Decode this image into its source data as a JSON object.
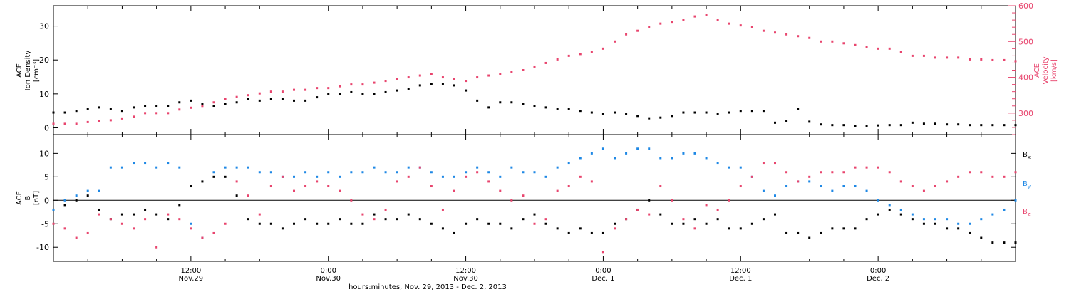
{
  "colors": {
    "black": "#000000",
    "pink": "#e8456e",
    "blue": "#1e88e5"
  },
  "footer": {
    "xaxis_title": "hours:minutes, Nov. 29, 2013 - Dec. 2, 2013"
  },
  "x_ticks": [
    {
      "time": "12:00",
      "date": "Nov.29",
      "hours": 12
    },
    {
      "time": "0:00",
      "date": "Nov.30",
      "hours": 24
    },
    {
      "time": "12:00",
      "date": "Nov.30",
      "hours": 36
    },
    {
      "time": "0:00",
      "date": "Dec. 1",
      "hours": 48
    },
    {
      "time": "12:00",
      "date": "Dec. 1",
      "hours": 60
    },
    {
      "time": "0:00",
      "date": "Dec. 2",
      "hours": 72
    }
  ],
  "chart_data": [
    {
      "type": "scatter",
      "panel": "top",
      "ylabel_lines": [
        "ACE",
        "Ion Density",
        "[cm⁻³]"
      ],
      "y2label_lines": [
        "ACE",
        "Velocity",
        "[km/s]"
      ],
      "xlim_hours": [
        0,
        84
      ],
      "ylim": [
        -2,
        36
      ],
      "yticks": [
        0,
        10,
        20,
        30
      ],
      "y2lim": [
        240,
        600
      ],
      "y2ticks": [
        300,
        400,
        500,
        600
      ],
      "series": [
        {
          "color": "#000000",
          "axis": "left",
          "x_hours": [
            0,
            1,
            2,
            3,
            4,
            5,
            6,
            7,
            8,
            9,
            10,
            11,
            12,
            13,
            14,
            15,
            16,
            17,
            18,
            19,
            20,
            21,
            22,
            23,
            24,
            25,
            26,
            27,
            28,
            29,
            30,
            31,
            32,
            33,
            34,
            35,
            36,
            37,
            38,
            39,
            40,
            41,
            42,
            43,
            44,
            45,
            46,
            47,
            48,
            49,
            50,
            51,
            52,
            53,
            54,
            55,
            56,
            57,
            58,
            59,
            60,
            61,
            62,
            63,
            64,
            65,
            66,
            67,
            68,
            69,
            70,
            71,
            72,
            73,
            74,
            75,
            76,
            77,
            78,
            79,
            80,
            81,
            82,
            83,
            84
          ],
          "values": [
            4.5,
            4.5,
            5,
            5.5,
            6,
            5.5,
            5,
            6,
            6.5,
            6.5,
            6.5,
            7.5,
            8,
            7,
            6.5,
            7,
            7.5,
            8.5,
            8,
            8.5,
            8.5,
            8,
            8,
            9,
            10,
            10,
            10.5,
            10,
            10,
            10.5,
            11,
            11.5,
            12.5,
            13,
            13,
            12.5,
            11,
            8,
            6,
            7.5,
            7.5,
            7,
            6.5,
            6,
            5.5,
            5.5,
            5,
            4.5,
            4,
            4.5,
            4,
            3.5,
            2.8,
            3,
            3.5,
            4.5,
            4.5,
            4.5,
            4,
            4.5,
            5,
            5,
            5,
            1.5,
            2,
            5.5,
            1.8,
            1,
            0.8,
            0.8,
            0.6,
            0.6,
            0.7,
            0.8,
            0.8,
            1.5,
            1.2,
            1.2,
            1,
            1,
            0.8,
            0.8,
            0.8,
            0.8,
            0.8
          ]
        },
        {
          "color": "#e8456e",
          "axis": "right",
          "x_hours": [
            0,
            1,
            2,
            3,
            4,
            5,
            6,
            7,
            8,
            9,
            10,
            11,
            12,
            13,
            14,
            15,
            16,
            17,
            18,
            19,
            20,
            21,
            22,
            23,
            24,
            25,
            26,
            27,
            28,
            29,
            30,
            31,
            32,
            33,
            34,
            35,
            36,
            37,
            38,
            39,
            40,
            41,
            42,
            43,
            44,
            45,
            46,
            47,
            48,
            49,
            50,
            51,
            52,
            53,
            54,
            55,
            56,
            57,
            58,
            59,
            60,
            61,
            62,
            63,
            64,
            65,
            66,
            67,
            68,
            69,
            70,
            71,
            72,
            73,
            74,
            75,
            76,
            77,
            78,
            79,
            80,
            81,
            82,
            83,
            84
          ],
          "values": [
            270,
            270,
            270,
            275,
            278,
            280,
            285,
            290,
            300,
            300,
            300,
            310,
            315,
            320,
            330,
            340,
            345,
            350,
            355,
            360,
            360,
            365,
            365,
            370,
            370,
            375,
            380,
            380,
            385,
            390,
            395,
            400,
            405,
            410,
            400,
            395,
            390,
            400,
            405,
            410,
            415,
            420,
            430,
            440,
            450,
            460,
            465,
            470,
            480,
            500,
            520,
            530,
            540,
            550,
            555,
            560,
            570,
            575,
            560,
            550,
            545,
            540,
            530,
            525,
            520,
            515,
            510,
            500,
            500,
            495,
            490,
            485,
            480,
            480,
            470,
            460,
            460,
            455,
            455,
            455,
            450,
            450,
            448,
            448,
            445
          ]
        }
      ]
    },
    {
      "type": "scatter",
      "panel": "bottom",
      "ylabel_lines": [
        "ACE",
        "B",
        "[nT]"
      ],
      "xlim_hours": [
        0,
        84
      ],
      "ylim": [
        -13,
        14
      ],
      "yticks": [
        -10,
        -5,
        0,
        5,
        10
      ],
      "legend": [
        {
          "label": "B",
          "sub": "x",
          "color": "#000000"
        },
        {
          "label": "B",
          "sub": "y",
          "color": "#1e88e5"
        },
        {
          "label": "B",
          "sub": "z",
          "color": "#e8456e"
        }
      ],
      "series": [
        {
          "name": "Bx",
          "color": "#000000",
          "x_hours": [
            0,
            1,
            2,
            3,
            4,
            5,
            6,
            7,
            8,
            9,
            10,
            11,
            12,
            13,
            14,
            15,
            16,
            17,
            18,
            19,
            20,
            21,
            22,
            23,
            24,
            25,
            26,
            27,
            28,
            29,
            30,
            31,
            32,
            33,
            34,
            35,
            36,
            37,
            38,
            39,
            40,
            41,
            42,
            43,
            44,
            45,
            46,
            47,
            48,
            49,
            50,
            51,
            52,
            53,
            54,
            55,
            56,
            57,
            58,
            59,
            60,
            61,
            62,
            63,
            64,
            65,
            66,
            67,
            68,
            69,
            70,
            71,
            72,
            73,
            74,
            75,
            76,
            77,
            78,
            79,
            80,
            81,
            82,
            83,
            84
          ],
          "values": [
            -2,
            -1,
            0,
            1,
            -2,
            -4,
            -3,
            -3,
            -2,
            -3,
            -4,
            -1,
            3,
            4,
            5,
            5,
            1,
            -4,
            -5,
            -5,
            -6,
            -5,
            -4,
            -5,
            -5,
            -4,
            -5,
            -5,
            -3,
            -4,
            -4,
            -3,
            -4,
            -5,
            -6,
            -7,
            -5,
            -4,
            -5,
            -5,
            -6,
            -4,
            -3,
            -5,
            -6,
            -7,
            -6,
            -7,
            -7,
            -5,
            -4,
            -2,
            0,
            -3,
            -5,
            -5,
            -4,
            -5,
            -4,
            -6,
            -6,
            -5,
            -4,
            -3,
            -7,
            -7,
            -8,
            -7,
            -6,
            -6,
            -6,
            -4,
            -3,
            -2,
            -3,
            -4,
            -5,
            -5,
            -6,
            -6,
            -7,
            -8,
            -9,
            -9,
            -9
          ]
        },
        {
          "name": "By",
          "color": "#1e88e5",
          "x_hours": [
            0,
            1,
            2,
            3,
            4,
            5,
            6,
            7,
            8,
            9,
            10,
            11,
            12,
            13,
            14,
            15,
            16,
            17,
            18,
            19,
            20,
            21,
            22,
            23,
            24,
            25,
            26,
            27,
            28,
            29,
            30,
            31,
            32,
            33,
            34,
            35,
            36,
            37,
            38,
            39,
            40,
            41,
            42,
            43,
            44,
            45,
            46,
            47,
            48,
            49,
            50,
            51,
            52,
            53,
            54,
            55,
            56,
            57,
            58,
            59,
            60,
            61,
            62,
            63,
            64,
            65,
            66,
            67,
            68,
            69,
            70,
            71,
            72,
            73,
            74,
            75,
            76,
            77,
            78,
            79,
            80,
            81,
            82,
            83,
            84
          ],
          "values": [
            -2,
            0,
            1,
            2,
            2,
            7,
            7,
            8,
            8,
            7,
            8,
            7,
            -5,
            -8,
            6,
            7,
            7,
            7,
            6,
            6,
            5,
            5,
            6,
            5,
            6,
            5,
            6,
            6,
            7,
            6,
            6,
            7,
            7,
            6,
            5,
            5,
            6,
            7,
            6,
            5,
            7,
            6,
            6,
            5,
            7,
            8,
            9,
            10,
            11,
            9,
            10,
            11,
            11,
            9,
            9,
            10,
            10,
            9,
            8,
            7,
            7,
            5,
            2,
            1,
            3,
            4,
            4,
            3,
            2,
            3,
            3,
            2,
            0,
            -1,
            -2,
            -3,
            -4,
            -4,
            -4,
            -5,
            -5,
            -4,
            -3,
            -2,
            0
          ]
        },
        {
          "name": "Bz",
          "color": "#e8456e",
          "x_hours": [
            0,
            1,
            2,
            3,
            4,
            5,
            6,
            7,
            8,
            9,
            10,
            11,
            12,
            13,
            14,
            15,
            16,
            17,
            18,
            19,
            20,
            21,
            22,
            23,
            24,
            25,
            26,
            27,
            28,
            29,
            30,
            31,
            32,
            33,
            34,
            35,
            36,
            37,
            38,
            39,
            40,
            41,
            42,
            43,
            44,
            45,
            46,
            47,
            48,
            49,
            50,
            51,
            52,
            53,
            54,
            55,
            56,
            57,
            58,
            59,
            60,
            61,
            62,
            63,
            64,
            65,
            66,
            67,
            68,
            69,
            70,
            71,
            72,
            73,
            74,
            75,
            76,
            77,
            78,
            79,
            80,
            81,
            82,
            83,
            84
          ],
          "values": [
            -5,
            -6,
            -8,
            -7,
            -3,
            -4,
            -5,
            -6,
            -4,
            -10,
            -3,
            -4,
            -6,
            -8,
            -7,
            -5,
            4,
            1,
            -3,
            3,
            5,
            2,
            3,
            4,
            3,
            2,
            0,
            -3,
            -4,
            -2,
            4,
            5,
            7,
            3,
            -2,
            2,
            5,
            6,
            4,
            2,
            0,
            1,
            -5,
            -4,
            2,
            3,
            5,
            4,
            -11,
            -6,
            -4,
            -2,
            -3,
            3,
            0,
            -4,
            -6,
            -1,
            -2,
            0,
            3,
            5,
            8,
            8,
            6,
            4,
            5,
            6,
            6,
            6,
            7,
            7,
            7,
            6,
            4,
            3,
            2,
            3,
            4,
            5,
            6,
            6,
            5,
            5,
            6
          ]
        }
      ]
    }
  ]
}
